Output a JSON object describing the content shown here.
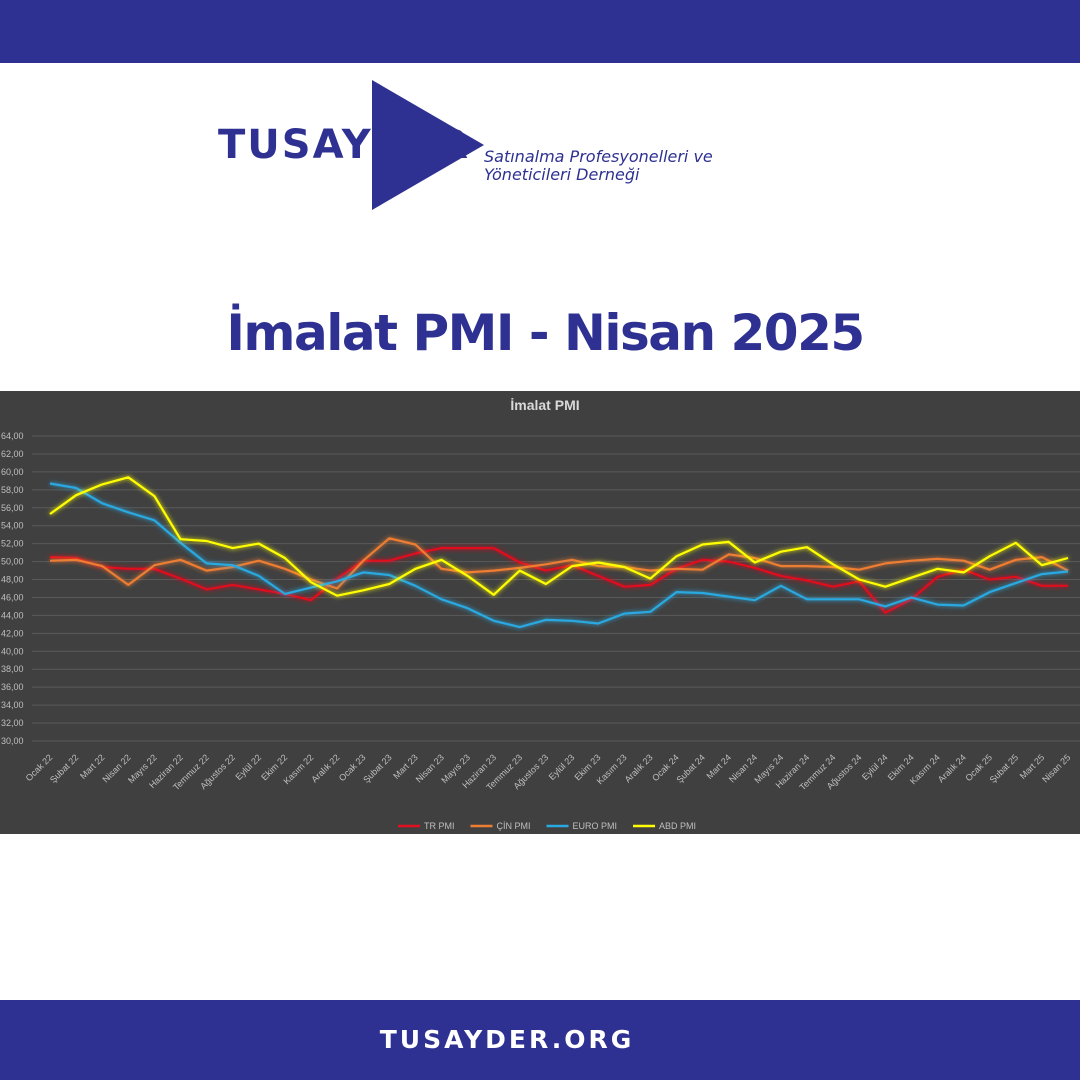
{
  "header": {
    "logo": "TUSAYDER",
    "tagline": [
      "Satınalma Profesyonelleri ve",
      "Yöneticileri Derneği"
    ]
  },
  "title": "İmalat PMI - Nisan 2025",
  "footer": "TUSAYDER.ORG",
  "chart_data": {
    "type": "line",
    "title": "İmalat PMI",
    "categories": [
      "Ocak 22",
      "Şubat 22",
      "Mart 22",
      "Nisan 22",
      "Mayıs 22",
      "Haziran 22",
      "Temmuz 22",
      "Ağustos 22",
      "Eylül 22",
      "Ekim 22",
      "Kasım 22",
      "Aralık 22",
      "Ocak 23",
      "Şubat 23",
      "Mart 23",
      "Nisan 23",
      "Mayıs 23",
      "Haziran 23",
      "Temmuz 23",
      "Ağustos 23",
      "Eylül 23",
      "Ekim 23",
      "Kasım 23",
      "Aralık 23",
      "Ocak 24",
      "Şubat 24",
      "Mart 24",
      "Nisan 24",
      "Mayıs 24",
      "Haziran 24",
      "Temmuz 24",
      "Ağustos 24",
      "Eylül 24",
      "Ekim 24",
      "Kasım 24",
      "Aralık 24",
      "Ocak 25",
      "Şubat 25",
      "Mart 25",
      "Nisan 25"
    ],
    "series": [
      {
        "name": "TR PMI",
        "color": "#e0101e",
        "values": [
          50.5,
          50.4,
          49.4,
          49.2,
          49.2,
          48.1,
          46.9,
          47.4,
          46.9,
          46.4,
          45.7,
          48.1,
          50.1,
          50.1,
          50.9,
          51.5,
          51.5,
          51.5,
          49.9,
          49.0,
          49.6,
          48.4,
          47.2,
          47.4,
          49.2,
          50.2,
          50.0,
          49.3,
          48.4,
          47.9,
          47.2,
          47.8,
          44.3,
          45.8,
          48.3,
          49.1,
          48.0,
          48.3,
          47.3,
          47.3
        ]
      },
      {
        "name": "ÇİN PMI",
        "color": "#ed7d31",
        "values": [
          50.1,
          50.2,
          49.5,
          47.4,
          49.6,
          50.2,
          49.0,
          49.4,
          50.1,
          49.2,
          48.0,
          47.0,
          50.1,
          52.6,
          51.9,
          49.2,
          48.8,
          49.0,
          49.3,
          49.7,
          50.2,
          49.5,
          49.4,
          49.0,
          49.2,
          49.1,
          50.8,
          50.4,
          49.5,
          49.5,
          49.4,
          49.1,
          49.8,
          50.1,
          50.3,
          50.1,
          49.1,
          50.2,
          50.5,
          49.0
        ]
      },
      {
        "name": "EURO PMI",
        "color": "#29a9e1",
        "values": [
          58.7,
          58.2,
          56.5,
          55.5,
          54.6,
          52.1,
          49.8,
          49.6,
          48.4,
          46.4,
          47.1,
          47.8,
          48.8,
          48.5,
          47.3,
          45.8,
          44.8,
          43.4,
          42.7,
          43.5,
          43.4,
          43.1,
          44.2,
          44.4,
          46.6,
          46.5,
          46.1,
          45.7,
          47.3,
          45.8,
          45.8,
          45.8,
          45.0,
          46.0,
          45.2,
          45.1,
          46.6,
          47.6,
          48.6,
          48.9
        ]
      },
      {
        "name": "ABD PMI",
        "color": "#ffff00",
        "values": [
          55.3,
          57.4,
          58.6,
          59.4,
          57.3,
          52.5,
          52.3,
          51.5,
          52.0,
          50.4,
          47.7,
          46.2,
          46.8,
          47.5,
          49.2,
          50.2,
          48.4,
          46.3,
          49.0,
          47.5,
          49.5,
          49.9,
          49.4,
          48.1,
          50.6,
          51.9,
          52.2,
          49.9,
          51.1,
          51.6,
          49.7,
          48.0,
          47.2,
          48.2,
          49.2,
          48.8,
          50.6,
          52.1,
          49.6,
          50.4
        ]
      }
    ],
    "ylim": [
      30,
      64
    ],
    "yticks": [
      {
        "value": 30,
        "label": "30,00"
      },
      {
        "value": 32,
        "label": "32,00"
      },
      {
        "value": 34,
        "label": "34,00"
      },
      {
        "value": 36,
        "label": "36,00"
      },
      {
        "value": 38,
        "label": "38,00"
      },
      {
        "value": 40,
        "label": "40,00"
      },
      {
        "value": 42,
        "label": "42,00"
      },
      {
        "value": 44,
        "label": "44,00"
      },
      {
        "value": 46,
        "label": "46,00"
      },
      {
        "value": 48,
        "label": "48,00"
      },
      {
        "value": 50,
        "label": "50,00"
      },
      {
        "value": 52,
        "label": "52,00"
      },
      {
        "value": 54,
        "label": "54,00"
      },
      {
        "value": 56,
        "label": "56,00"
      },
      {
        "value": 58,
        "label": "58,00"
      },
      {
        "value": 60,
        "label": "60,00"
      },
      {
        "value": 62,
        "label": "62,00"
      },
      {
        "value": 64,
        "label": "64,00"
      }
    ],
    "grid": true,
    "legend": "bottom"
  }
}
